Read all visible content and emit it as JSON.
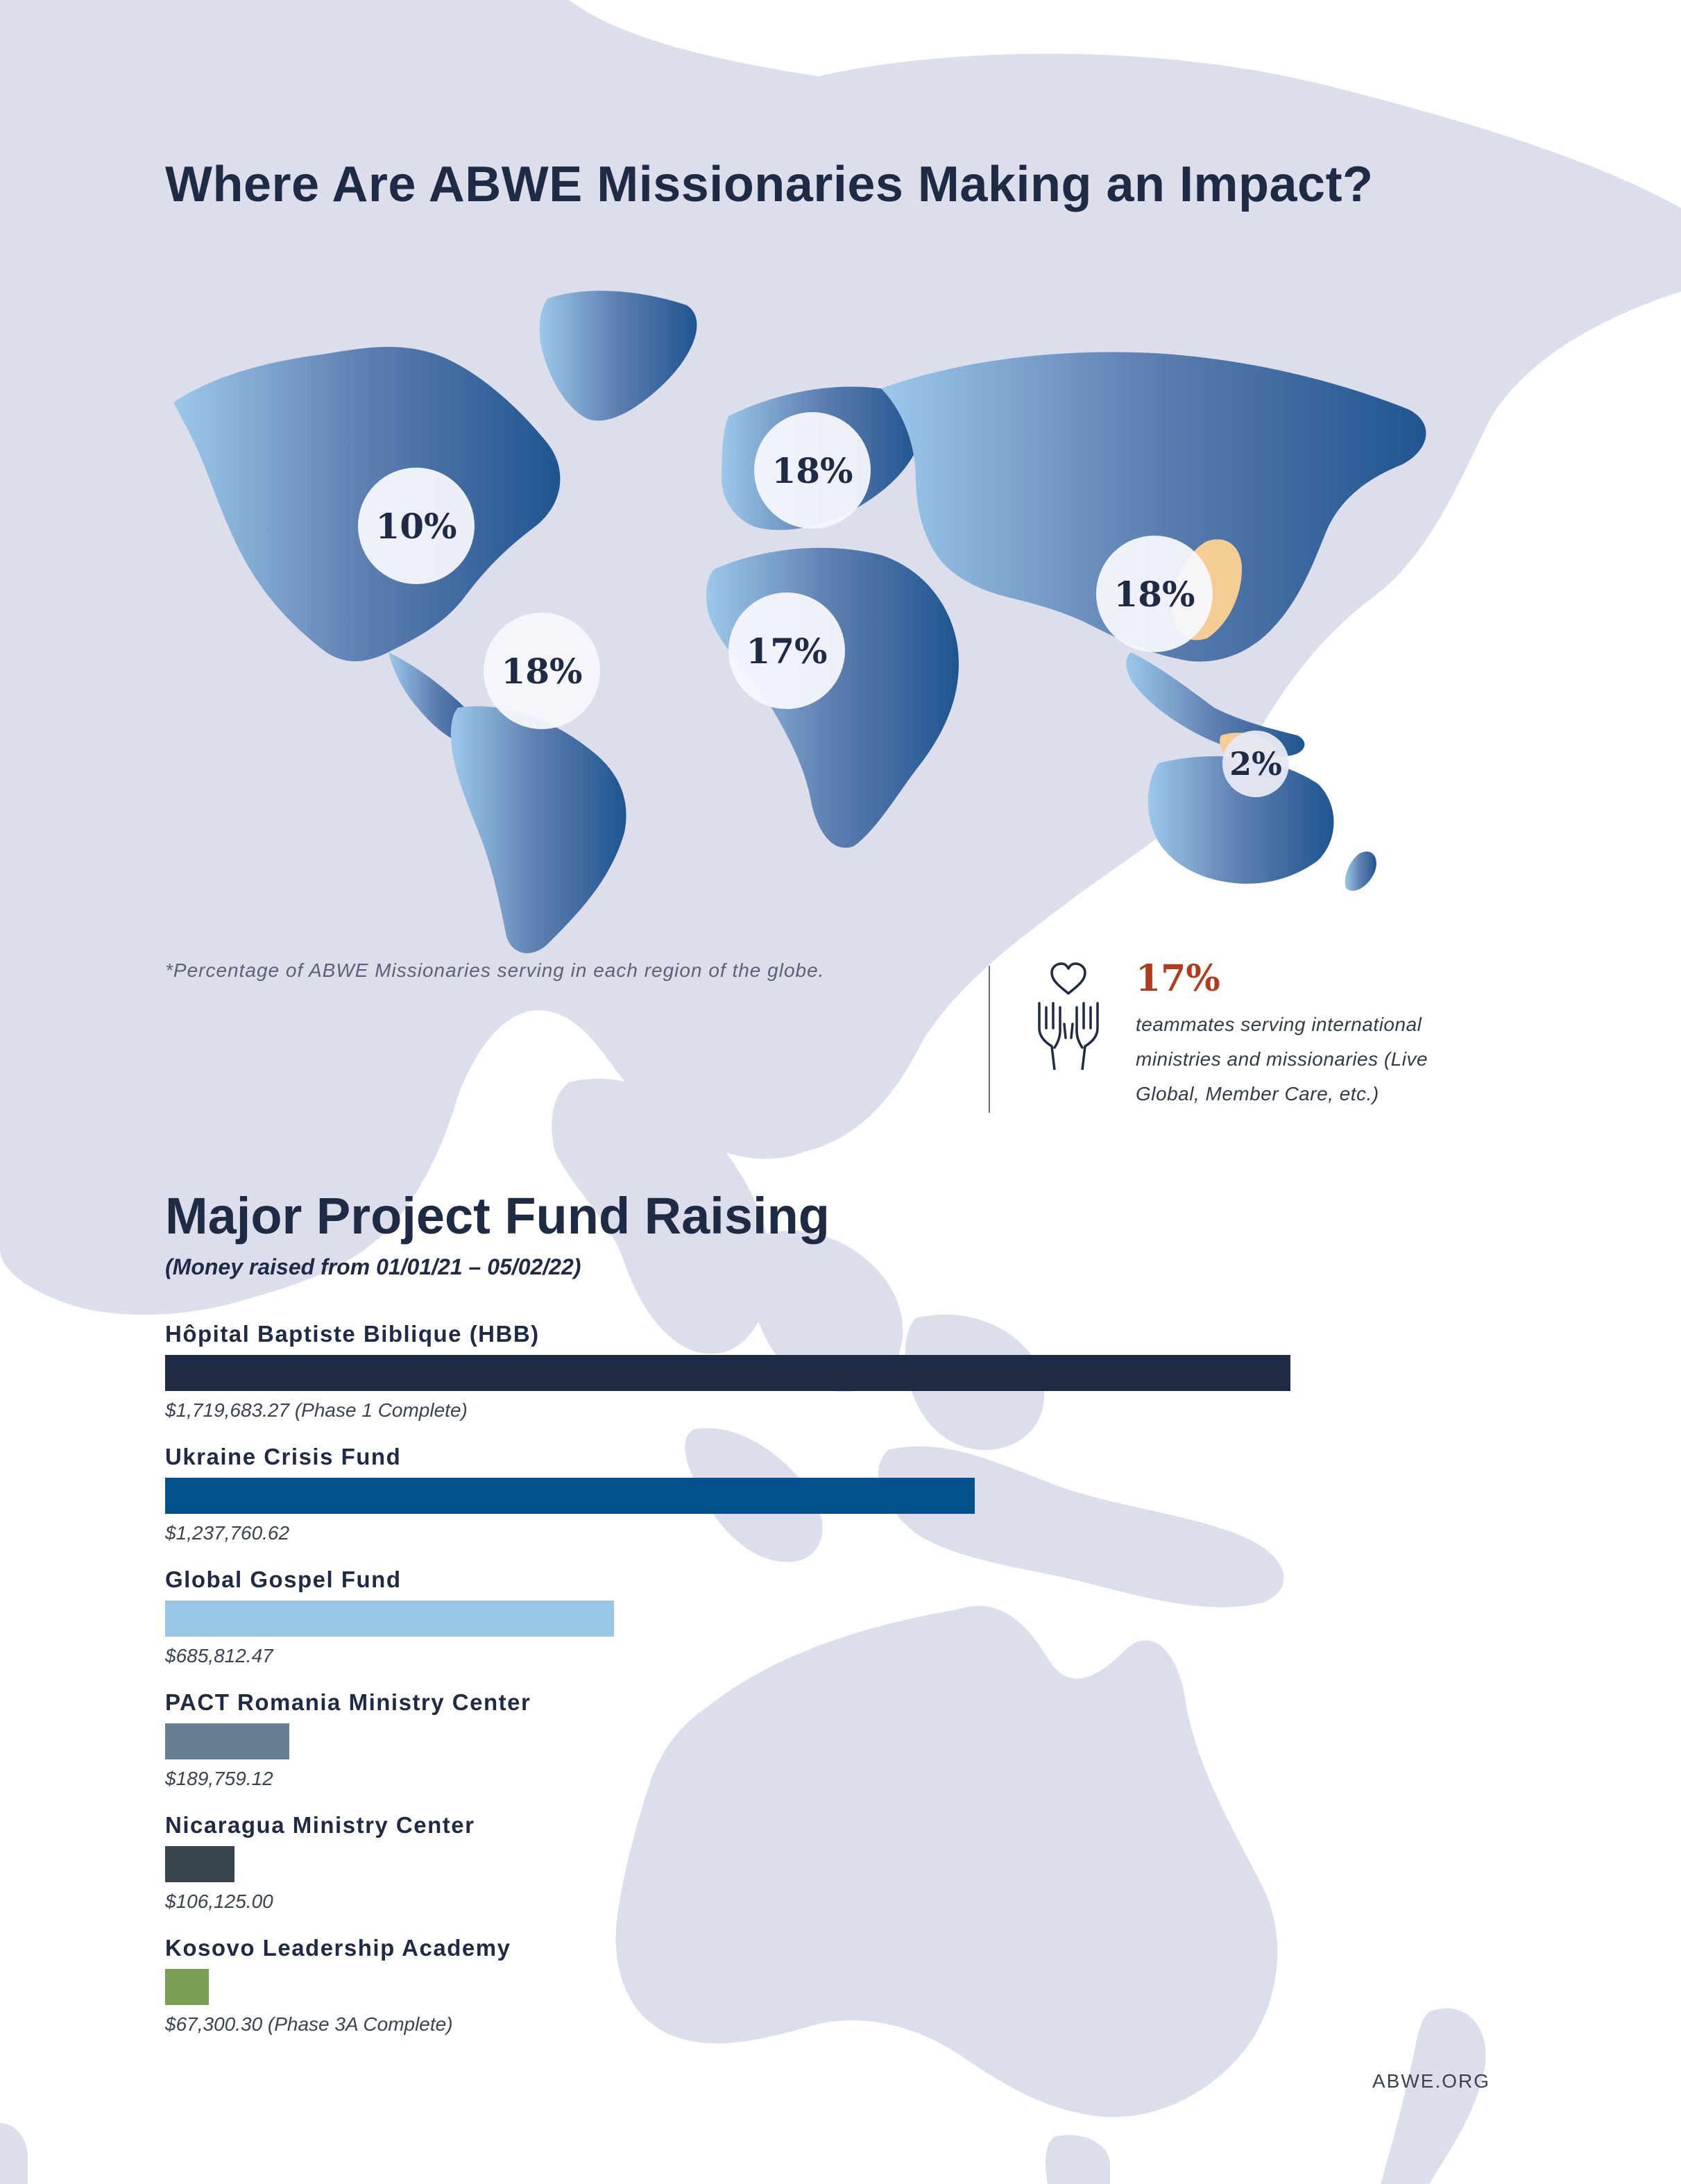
{
  "header": {
    "title": "Where Are ABWE Missionaries Making an Impact?"
  },
  "map": {
    "regions": [
      {
        "name": "North America",
        "label": "10%"
      },
      {
        "name": "Latin America",
        "label": "18%"
      },
      {
        "name": "Europe",
        "label": "18%"
      },
      {
        "name": "Africa",
        "label": "17%"
      },
      {
        "name": "East Asia",
        "label": "18%"
      },
      {
        "name": "Oceania",
        "label": "2%"
      }
    ],
    "footnote": "*Percentage of ABWE Missionaries serving in each region of the globe.",
    "colors": {
      "gradient_start": "#9cc8ea",
      "gradient_mid": "#5d7eb0",
      "gradient_end": "#1f5590",
      "highlight": "#f4cd94",
      "background_land": "#dcdfeb"
    }
  },
  "stat": {
    "value": "17%",
    "description": "teammates serving international ministries and missionaries (Live Global, Member Care, etc.)",
    "icon": "heart-hands-icon"
  },
  "fundraising": {
    "title": "Major Project Fund Raising",
    "subtitle": "(Money raised from 01/01/21 – 05/02/22)"
  },
  "chart_data": {
    "type": "bar",
    "orientation": "horizontal",
    "categories": [
      "Hôpital Baptiste Biblique (HBB)",
      "Ukraine Crisis Fund",
      "Global Gospel Fund",
      "PACT Romania Ministry Center",
      "Nicaragua Ministry Center",
      "Kosovo Leadership Academy"
    ],
    "values": [
      1719683.27,
      1237760.62,
      685812.47,
      189759.12,
      106125.0,
      67300.3
    ],
    "value_labels": [
      "$1,719,683.27 (Phase 1 Complete)",
      "$1,237,760.62",
      "$685,812.47",
      "$189,759.12",
      "$106,125.00",
      "$67,300.30 (Phase 3A Complete)"
    ],
    "colors": [
      "#1f2a44",
      "#04528c",
      "#9ac6e6",
      "#667f95",
      "#36444e",
      "#7a9f55"
    ],
    "title": "Major Project Fund Raising",
    "xlim": [
      0,
      1719683.27
    ],
    "grid": false,
    "legend": "none"
  },
  "footer": {
    "url": "ABWE.ORG"
  }
}
